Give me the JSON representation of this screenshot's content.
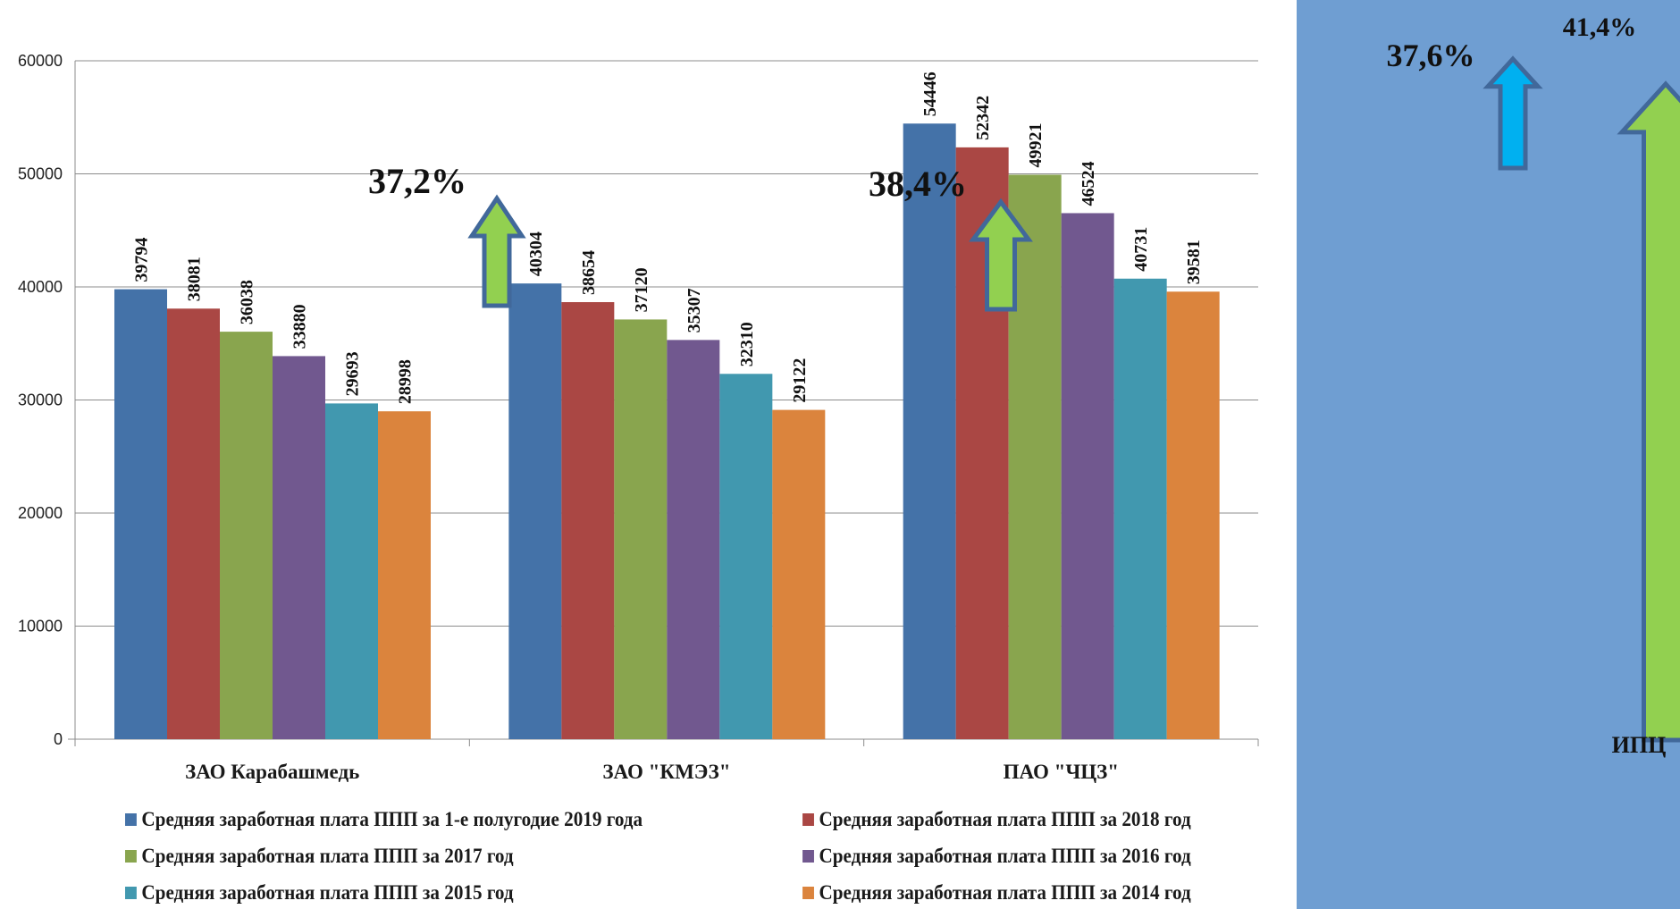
{
  "chart_data": {
    "type": "bar",
    "categories": [
      "ЗАО Карабашмедь",
      "ЗАО \"КМЭЗ\"",
      "ПАО \"ЧЦЗ\""
    ],
    "ylim": [
      0,
      60000
    ],
    "yticks": [
      0,
      10000,
      20000,
      30000,
      40000,
      50000,
      60000
    ],
    "grid": true,
    "legend_position": "bottom",
    "series": [
      {
        "name": "Средняя заработная плата ППП за 1-е полугодие 2019 года",
        "values": [
          39794,
          40304,
          54446
        ],
        "color": "#4472a8"
      },
      {
        "name": "Средняя заработная плата ППП за 2018 год",
        "values": [
          38081,
          38654,
          52342
        ],
        "color": "#aa4744"
      },
      {
        "name": "Средняя заработная плата ППП за 2017 год",
        "values": [
          36038,
          37120,
          49921
        ],
        "color": "#89a54e"
      },
      {
        "name": "Средняя заработная плата ППП за 2016 год",
        "values": [
          33880,
          35307,
          46524
        ],
        "color": "#71588f"
      },
      {
        "name": "Средняя заработная плата ППП за 2015 год",
        "values": [
          29693,
          32310,
          40731
        ],
        "color": "#4198af"
      },
      {
        "name": "Средняя заработная плата ППП за 2014 год",
        "values": [
          28998,
          29122,
          39581
        ],
        "color": "#db843d"
      }
    ],
    "annotations": [
      {
        "text": "37,2%",
        "category_index": 1,
        "arrow_color": "#92d050"
      },
      {
        "text": "38,4%",
        "category_index": 2,
        "arrow_color": "#92d050"
      }
    ]
  },
  "side_panel": {
    "label_blue": "37,6%",
    "label_green": "41,4%",
    "bottom_label": "ИПЦ",
    "blue_arrow_color": "#00b0f0",
    "green_arrow_color": "#92d050"
  }
}
